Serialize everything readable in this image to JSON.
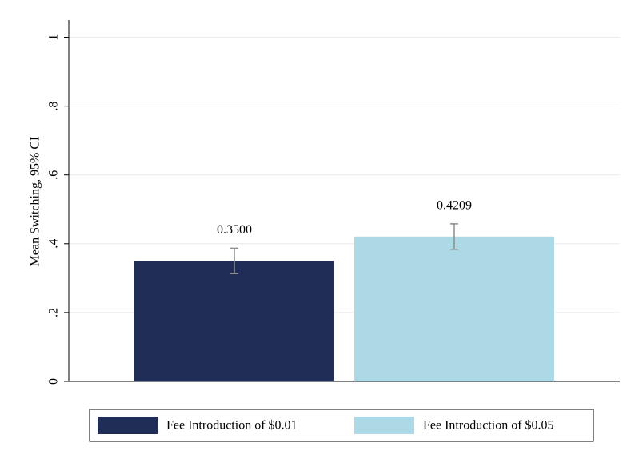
{
  "chart_data": {
    "type": "bar",
    "ylabel": "Mean Switching, 95% CI",
    "ylim": [
      0,
      1.05
    ],
    "yticks": [
      0,
      {
        "value": 0.2,
        "label": ".2"
      },
      {
        "value": 0.4,
        "label": ".4"
      },
      {
        "value": 0.6,
        "label": ".6"
      },
      {
        "value": 0.8,
        "label": ".8"
      },
      1
    ],
    "grid": true,
    "series": [
      {
        "name": "Fee Introduction of $0.01",
        "color": "#1f2d57",
        "values": [
          0.35
        ],
        "value_labels": [
          "0.3500"
        ],
        "errors": [
          0.037
        ]
      },
      {
        "name": "Fee Introduction of $0.05",
        "color": "#add8e6",
        "values": [
          0.4209
        ],
        "value_labels": [
          "0.4209"
        ],
        "errors": [
          0.037
        ]
      }
    ],
    "legend": "bottom"
  }
}
